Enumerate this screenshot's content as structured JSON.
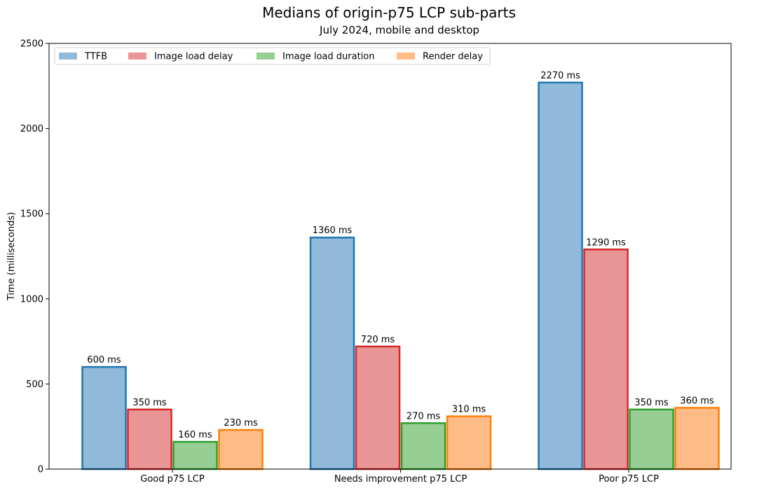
{
  "chart_data": {
    "type": "bar",
    "title": "Medians of origin-p75 LCP sub-parts",
    "subtitle": "July 2024, mobile and desktop",
    "xlabel": "",
    "ylabel": "Time (milliseconds)",
    "ylim": [
      0,
      2500
    ],
    "yticks": [
      0,
      500,
      1000,
      1500,
      2000,
      2500
    ],
    "categories": [
      "Good p75 LCP",
      "Needs improvement p75 LCP",
      "Poor p75 LCP"
    ],
    "series": [
      {
        "name": "TTFB",
        "values": [
          600,
          1360,
          2270
        ],
        "labels": [
          "600 ms",
          "1360 ms",
          "2270 ms"
        ],
        "fill": "#90b9da",
        "stroke": "#1f77b4"
      },
      {
        "name": "Image load delay",
        "values": [
          350,
          720,
          1290
        ],
        "labels": [
          "350 ms",
          "720 ms",
          "1290 ms"
        ],
        "fill": "#e99596",
        "stroke": "#d62728"
      },
      {
        "name": "Image load duration",
        "values": [
          160,
          270,
          350
        ],
        "labels": [
          "160 ms",
          "270 ms",
          "350 ms"
        ],
        "fill": "#96ce94",
        "stroke": "#2ca02c"
      },
      {
        "name": "Render delay",
        "values": [
          230,
          310,
          360
        ],
        "labels": [
          "230 ms",
          "310 ms",
          "360 ms"
        ],
        "fill": "#fdbb85",
        "stroke": "#ff7f0e"
      }
    ],
    "legend": "top-left",
    "grid": false
  }
}
